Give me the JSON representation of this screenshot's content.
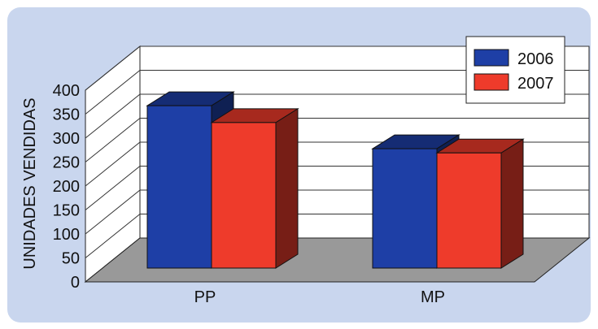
{
  "chart_data": {
    "type": "bar",
    "categories": [
      "PP",
      "MP"
    ],
    "series": [
      {
        "name": "2006",
        "values": [
          385,
          283
        ],
        "color": "#1e3fa6"
      },
      {
        "name": "2007",
        "values": [
          345,
          273
        ],
        "color": "#ee3b2b"
      }
    ],
    "ylabel": "UNIDADES VENDIDAS",
    "xlabel": "",
    "ylim": [
      0,
      400
    ],
    "yticks": [
      0,
      50,
      100,
      150,
      200,
      250,
      300,
      350,
      400
    ],
    "grid": true,
    "legend": "top-right",
    "background": "#c9d6ee",
    "floor_color": "#999999"
  }
}
